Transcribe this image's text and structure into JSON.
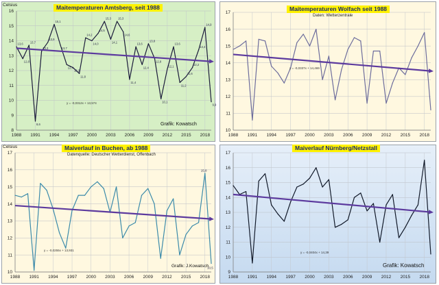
{
  "chart_data": [
    {
      "type": "line",
      "title": "Maitemperaturen Amtsberg, seit 1988",
      "subtitle": "",
      "ylabel": "Celsius",
      "credit": "Grafik: Kowatsch",
      "equation": "y = -0,0312x + 13,574",
      "ylim": [
        8,
        16
      ],
      "yticks": [
        8,
        9,
        10,
        11,
        12,
        13,
        14,
        15,
        16
      ],
      "xticks": [
        1988,
        1991,
        1994,
        1997,
        2000,
        2003,
        2006,
        2009,
        2012,
        2015,
        2018
      ],
      "x": [
        1988,
        1989,
        1990,
        1991,
        1992,
        1993,
        1994,
        1995,
        1996,
        1997,
        1998,
        1999,
        2000,
        2001,
        2002,
        2003,
        2004,
        2005,
        2006,
        2007,
        2008,
        2009,
        2010,
        2011,
        2012,
        2013,
        2014,
        2015,
        2016,
        2017,
        2018,
        2019
      ],
      "series": [
        {
          "values": [
            13.6,
            12.8,
            13.7,
            8.6,
            13.3,
            13.9,
            15.1,
            13.7,
            12.4,
            12.2,
            11.8,
            14.2,
            14.0,
            14.5,
            15.3,
            14.1,
            15.3,
            14.6,
            11.4,
            13.6,
            12.4,
            13.8,
            12.8,
            10.1,
            12.1,
            13.6,
            11.2,
            11.6,
            12.2,
            13.4,
            14.9,
            9.9
          ]
        }
      ],
      "data_labels": [
        "13,6",
        "12,8",
        "13,7",
        "8,6",
        "13,3",
        "13,9",
        "15,1",
        "13,7",
        "12,4",
        "12,2",
        "11,8",
        "14,2",
        "14,0",
        "14,5",
        "15,3",
        "14,1",
        "15,3",
        "14,6",
        "11,4",
        "13,6",
        "12,4",
        "13,8",
        "12,8",
        "10,1",
        "12,1",
        "13,6",
        "11,2",
        "11,6",
        "12,2",
        "13,4",
        "14,9",
        "9,9"
      ],
      "trend": [
        13.5,
        12.6
      ],
      "grid": true,
      "colors": {
        "bg": "#d6efc5",
        "line": "#1a1a3a",
        "trend": "#5c3a9e"
      }
    },
    {
      "type": "line",
      "title": "Maitemperaturen Wolfach seit 1988",
      "subtitle": "Daten: Wetterzentrale",
      "ylabel": "",
      "credit": "",
      "equation": "y = -0,0337x + 14,469",
      "ylim": [
        10,
        17
      ],
      "yticks": [
        10,
        11,
        12,
        13,
        14,
        15,
        16,
        17
      ],
      "xticks": [
        1988,
        1991,
        1994,
        1997,
        2000,
        2003,
        2006,
        2009,
        2012,
        2015,
        2018
      ],
      "x": [
        1988,
        1989,
        1990,
        1991,
        1992,
        1993,
        1994,
        1995,
        1996,
        1997,
        1998,
        1999,
        2000,
        2001,
        2002,
        2003,
        2004,
        2005,
        2006,
        2007,
        2008,
        2009,
        2010,
        2011,
        2012,
        2013,
        2014,
        2015,
        2016,
        2017,
        2018,
        2019
      ],
      "series": [
        {
          "values": [
            14.8,
            15.0,
            15.3,
            10.6,
            15.4,
            15.3,
            13.8,
            13.4,
            12.8,
            13.7,
            15.2,
            15.7,
            15.0,
            16.0,
            13.0,
            14.4,
            11.8,
            13.6,
            14.8,
            15.5,
            15.3,
            11.6,
            14.7,
            14.7,
            11.6,
            12.8,
            13.7,
            13.3,
            14.3,
            15.0,
            15.8,
            11.2
          ]
        }
      ],
      "trend": [
        14.5,
        13.5
      ],
      "grid": true,
      "colors": {
        "bg": "#fff8e0",
        "line": "#6c6c9c",
        "trend": "#5c3a9e"
      }
    },
    {
      "type": "line",
      "title": "Maiverlauf in Buchen, ab 1988",
      "subtitle": "Datenquelle: Deutscher Wetterdienst, Offenbach",
      "ylabel": "Celsius",
      "credit": "Grafik: J.Kowatsch",
      "equation": "y = -0,0255x + 13,931",
      "ylim": [
        10,
        17
      ],
      "yticks": [
        10,
        11,
        12,
        13,
        14,
        15,
        16,
        17
      ],
      "xticks": [
        1988,
        1991,
        1994,
        1997,
        2000,
        2003,
        2006,
        2009,
        2012,
        2015,
        2018
      ],
      "x": [
        1988,
        1989,
        1990,
        1991,
        1992,
        1993,
        1994,
        1995,
        1996,
        1997,
        1998,
        1999,
        2000,
        2001,
        2002,
        2003,
        2004,
        2005,
        2006,
        2007,
        2008,
        2009,
        2010,
        2011,
        2012,
        2013,
        2014,
        2015,
        2016,
        2017,
        2018,
        2019
      ],
      "series": [
        {
          "values": [
            14.5,
            14.4,
            14.6,
            10.1,
            15.2,
            14.8,
            13.7,
            12.3,
            11.4,
            13.6,
            14.5,
            14.5,
            15.0,
            15.3,
            14.9,
            13.5,
            15.0,
            12.0,
            12.7,
            12.9,
            14.5,
            14.9,
            14.0,
            10.8,
            13.6,
            14.3,
            11.0,
            12.2,
            12.7,
            12.9,
            15.8,
            10.5
          ]
        }
      ],
      "data_labels": [
        "15,8",
        "10,5"
      ],
      "trend": [
        13.9,
        13.1
      ],
      "grid": true,
      "colors": {
        "bg": "#fff8e0",
        "line": "#3a8aaa",
        "trend": "#5c3a9e"
      }
    },
    {
      "type": "line",
      "title": "Maiverlauf Nürnberg/Netzstall",
      "subtitle": "",
      "ylabel": "",
      "credit": "Grafik: Kowatsch",
      "equation": "y = -0,0404x + 14,39",
      "ylim": [
        9,
        17
      ],
      "yticks": [
        9,
        10,
        11,
        12,
        13,
        14,
        15,
        16,
        17
      ],
      "xticks": [
        1988,
        1991,
        1994,
        1997,
        2000,
        2003,
        2006,
        2009,
        2012,
        2015,
        2018
      ],
      "x": [
        1988,
        1989,
        1990,
        1991,
        1992,
        1993,
        1994,
        1995,
        1996,
        1997,
        1998,
        1999,
        2000,
        2001,
        2002,
        2003,
        2004,
        2005,
        2006,
        2007,
        2008,
        2009,
        2010,
        2011,
        2012,
        2013,
        2014,
        2015,
        2016,
        2017,
        2018,
        2019
      ],
      "series": [
        {
          "values": [
            14.8,
            14.2,
            14.4,
            9.6,
            15.1,
            15.6,
            13.5,
            12.9,
            12.4,
            13.7,
            14.7,
            14.9,
            15.3,
            16.0,
            14.7,
            15.2,
            12.0,
            12.2,
            12.5,
            14.0,
            14.3,
            13.1,
            13.6,
            11.0,
            13.5,
            14.2,
            11.3,
            12.0,
            12.8,
            13.5,
            16.5,
            10.2
          ]
        }
      ],
      "trend": [
        14.2,
        13.0
      ],
      "grid": true,
      "colors": {
        "bg": "#c5daf0",
        "line": "#101828",
        "trend": "#5c3a9e"
      }
    }
  ]
}
